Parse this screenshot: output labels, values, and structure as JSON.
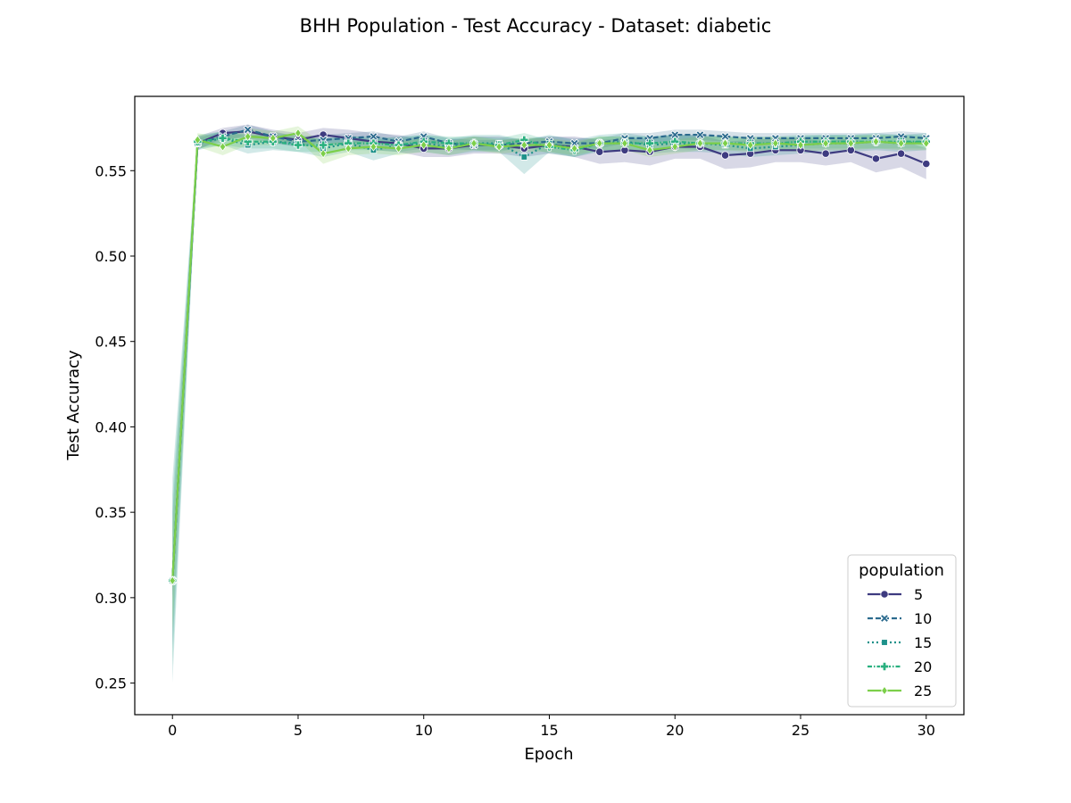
{
  "chart_data": {
    "type": "line",
    "title": "BHH Population - Test Accuracy - Dataset: diabetic",
    "xlabel": "Epoch",
    "ylabel": "Test Accuracy",
    "xlim": [
      -1.5,
      31.5
    ],
    "ylim": [
      0.2315,
      0.5935
    ],
    "xticks": [
      0,
      5,
      10,
      15,
      20,
      25,
      30
    ],
    "yticks": [
      0.25,
      0.3,
      0.35,
      0.4,
      0.45,
      0.5,
      0.55
    ],
    "grid": false,
    "legend": {
      "title": "population",
      "position": "bottom-right"
    },
    "x": [
      0,
      1,
      2,
      3,
      4,
      5,
      6,
      7,
      8,
      9,
      10,
      11,
      12,
      13,
      14,
      15,
      16,
      17,
      18,
      19,
      20,
      21,
      22,
      23,
      24,
      25,
      26,
      27,
      28,
      29,
      30
    ],
    "series": [
      {
        "name": "5",
        "color": "#3e3b80",
        "dash": "solid",
        "marker": "circle",
        "values": [
          0.31,
          0.566,
          0.572,
          0.573,
          0.57,
          0.568,
          0.571,
          0.569,
          0.567,
          0.566,
          0.563,
          0.563,
          0.565,
          0.565,
          0.563,
          0.565,
          0.564,
          0.561,
          0.562,
          0.561,
          0.564,
          0.564,
          0.559,
          0.56,
          0.562,
          0.562,
          0.56,
          0.562,
          0.557,
          0.56,
          0.554
        ],
        "band": [
          0.01,
          0.004,
          0.003,
          0.004,
          0.004,
          0.004,
          0.004,
          0.005,
          0.005,
          0.005,
          0.005,
          0.005,
          0.005,
          0.005,
          0.005,
          0.005,
          0.006,
          0.007,
          0.007,
          0.008,
          0.007,
          0.007,
          0.008,
          0.008,
          0.007,
          0.007,
          0.007,
          0.007,
          0.008,
          0.008,
          0.009
        ]
      },
      {
        "name": "10",
        "color": "#2c6b8e",
        "dash": "6,3",
        "marker": "x",
        "values": [
          0.31,
          0.566,
          0.57,
          0.574,
          0.57,
          0.567,
          0.568,
          0.569,
          0.57,
          0.567,
          0.57,
          0.566,
          0.565,
          0.565,
          0.566,
          0.567,
          0.566,
          0.566,
          0.569,
          0.569,
          0.571,
          0.571,
          0.57,
          0.569,
          0.569,
          0.569,
          0.569,
          0.569,
          0.569,
          0.57,
          0.569
        ],
        "band": [
          0.04,
          0.003,
          0.003,
          0.003,
          0.003,
          0.003,
          0.003,
          0.003,
          0.003,
          0.003,
          0.003,
          0.003,
          0.003,
          0.003,
          0.003,
          0.003,
          0.003,
          0.003,
          0.003,
          0.003,
          0.003,
          0.003,
          0.003,
          0.003,
          0.003,
          0.003,
          0.003,
          0.003,
          0.003,
          0.003,
          0.003
        ]
      },
      {
        "name": "15",
        "color": "#1e918a",
        "dash": "2,3",
        "marker": "square",
        "values": [
          0.31,
          0.566,
          0.569,
          0.565,
          0.567,
          0.566,
          0.563,
          0.566,
          0.562,
          0.565,
          0.566,
          0.564,
          0.566,
          0.566,
          0.558,
          0.566,
          0.563,
          0.566,
          0.567,
          0.565,
          0.566,
          0.566,
          0.565,
          0.563,
          0.564,
          0.565,
          0.566,
          0.566,
          0.567,
          0.566,
          0.567
        ],
        "band": [
          0.06,
          0.004,
          0.004,
          0.005,
          0.005,
          0.005,
          0.005,
          0.005,
          0.006,
          0.005,
          0.005,
          0.005,
          0.005,
          0.005,
          0.01,
          0.005,
          0.005,
          0.005,
          0.005,
          0.005,
          0.005,
          0.005,
          0.005,
          0.005,
          0.005,
          0.005,
          0.005,
          0.005,
          0.005,
          0.005,
          0.005
        ]
      },
      {
        "name": "20",
        "color": "#2ab07f",
        "dash": "5,2,1.5,2",
        "marker": "plus",
        "values": [
          0.31,
          0.567,
          0.569,
          0.567,
          0.567,
          0.565,
          0.565,
          0.566,
          0.566,
          0.565,
          0.567,
          0.566,
          0.566,
          0.565,
          0.568,
          0.564,
          0.562,
          0.566,
          0.566,
          0.566,
          0.567,
          0.566,
          0.566,
          0.566,
          0.566,
          0.567,
          0.567,
          0.567,
          0.567,
          0.567,
          0.567
        ],
        "band": [
          0.05,
          0.004,
          0.004,
          0.004,
          0.004,
          0.004,
          0.004,
          0.004,
          0.004,
          0.004,
          0.004,
          0.004,
          0.004,
          0.004,
          0.004,
          0.004,
          0.004,
          0.004,
          0.004,
          0.004,
          0.004,
          0.004,
          0.004,
          0.004,
          0.004,
          0.004,
          0.004,
          0.004,
          0.004,
          0.004,
          0.004
        ]
      },
      {
        "name": "25",
        "color": "#7ccf4a",
        "dash": "solid",
        "marker": "diamond",
        "values": [
          0.31,
          0.568,
          0.564,
          0.57,
          0.569,
          0.572,
          0.56,
          0.563,
          0.564,
          0.563,
          0.565,
          0.563,
          0.566,
          0.564,
          0.565,
          0.565,
          0.563,
          0.566,
          0.566,
          0.562,
          0.564,
          0.566,
          0.566,
          0.565,
          0.566,
          0.565,
          0.566,
          0.566,
          0.567,
          0.566,
          0.566
        ],
        "band": [
          0.03,
          0.004,
          0.005,
          0.005,
          0.004,
          0.004,
          0.006,
          0.004,
          0.004,
          0.004,
          0.004,
          0.004,
          0.004,
          0.004,
          0.004,
          0.004,
          0.004,
          0.004,
          0.004,
          0.004,
          0.004,
          0.004,
          0.004,
          0.004,
          0.004,
          0.004,
          0.004,
          0.004,
          0.004,
          0.004,
          0.004
        ]
      }
    ]
  }
}
